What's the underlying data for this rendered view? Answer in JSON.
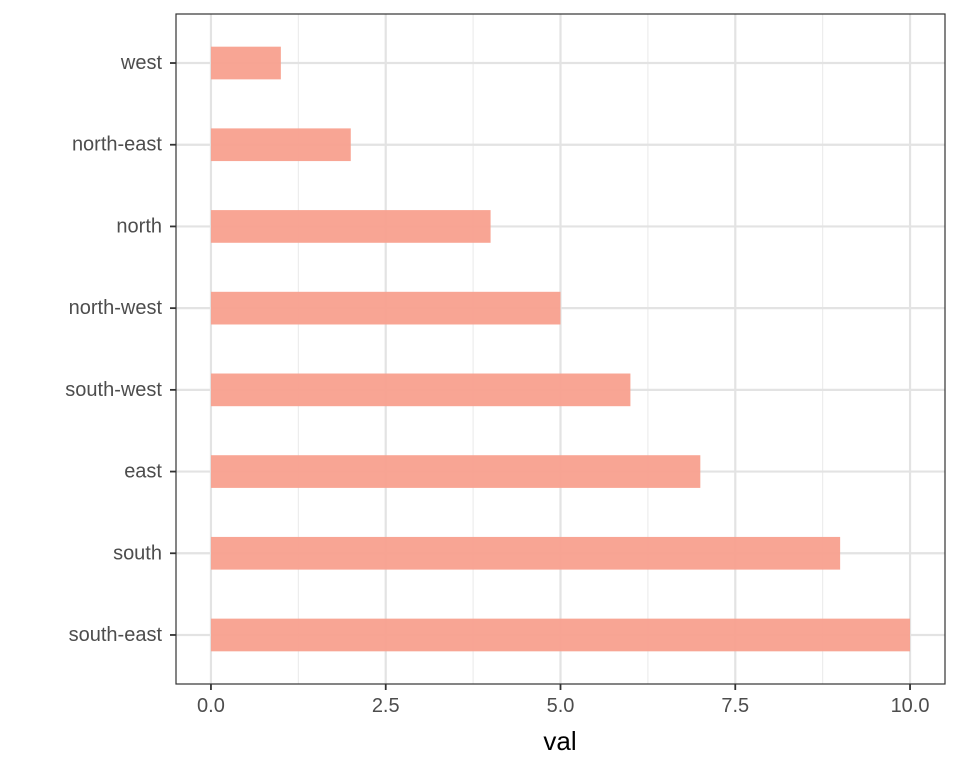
{
  "chart_data": {
    "type": "bar",
    "orientation": "horizontal",
    "categories": [
      "west",
      "north-east",
      "north",
      "north-west",
      "south-west",
      "east",
      "south",
      "south-east"
    ],
    "values": [
      1,
      2,
      4,
      5,
      6,
      7,
      9,
      10
    ],
    "xlabel": "val",
    "ylabel": "",
    "xlim": [
      -0.5,
      10.5
    ],
    "x_ticks": [
      "0.0",
      "2.5",
      "5.0",
      "7.5",
      "10.0"
    ],
    "x_tick_values": [
      0,
      2.5,
      5,
      7.5,
      10
    ],
    "grid": true,
    "bar_color": "#F8A08E",
    "theme": "bw"
  }
}
